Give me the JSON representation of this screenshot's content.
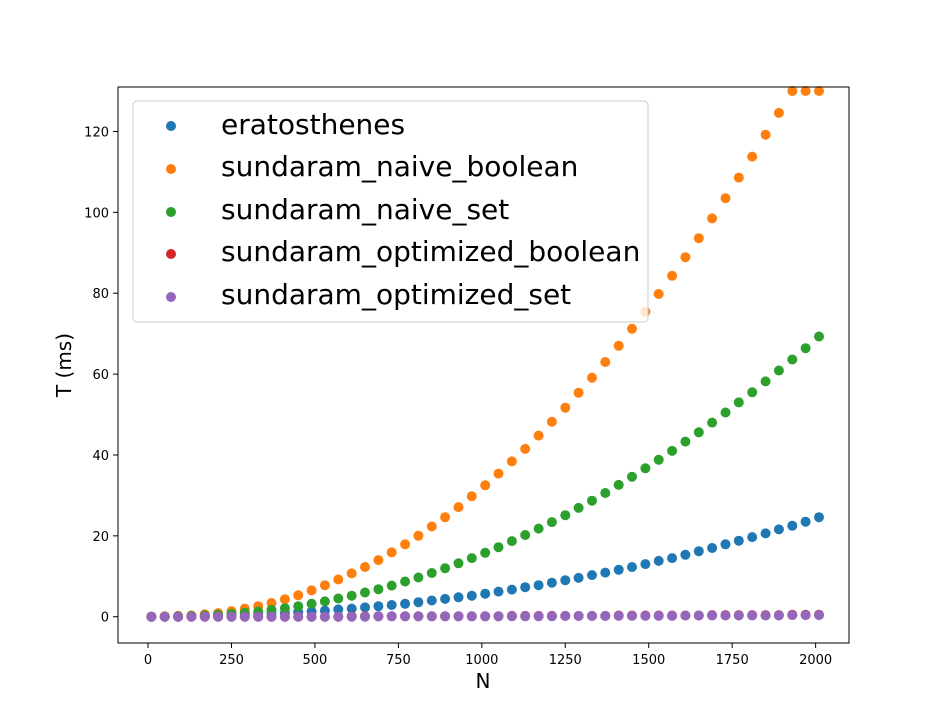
{
  "chart_data": {
    "type": "scatter",
    "title": "",
    "xlabel": "N",
    "ylabel": "T (ms)",
    "xlim": [
      -90,
      2100
    ],
    "ylim": [
      -6.5,
      131
    ],
    "xticks": [
      0,
      250,
      500,
      750,
      1000,
      1250,
      1500,
      1750,
      2000
    ],
    "yticks": [
      0,
      20,
      40,
      60,
      80,
      100,
      120
    ],
    "grid": false,
    "legend_position": "upper-left",
    "x": [
      10,
      50,
      90,
      130,
      170,
      210,
      250,
      290,
      330,
      370,
      410,
      450,
      490,
      530,
      570,
      610,
      650,
      690,
      730,
      770,
      810,
      850,
      890,
      930,
      970,
      1010,
      1050,
      1090,
      1130,
      1170,
      1210,
      1250,
      1290,
      1330,
      1370,
      1410,
      1450,
      1490,
      1530,
      1570,
      1610,
      1650,
      1690,
      1730,
      1770,
      1810,
      1850,
      1890,
      1930,
      1970,
      2010
    ],
    "series": [
      {
        "name": "eratosthenes",
        "color": "#1f77b4",
        "values": [
          0.0,
          0.0,
          0.0,
          0.1,
          0.2,
          0.3,
          0.4,
          0.5,
          0.6,
          0.8,
          0.9,
          1.1,
          1.3,
          1.5,
          1.8,
          2.0,
          2.3,
          2.6,
          2.9,
          3.2,
          3.6,
          4.0,
          4.4,
          4.8,
          5.2,
          5.7,
          6.2,
          6.7,
          7.3,
          7.8,
          8.4,
          9.0,
          9.6,
          10.3,
          10.9,
          11.6,
          12.3,
          13.0,
          13.8,
          14.5,
          15.3,
          16.2,
          17.0,
          17.9,
          18.8,
          19.7,
          20.6,
          21.6,
          22.5,
          23.5,
          24.6
        ]
      },
      {
        "name": "sundaram_naive_boolean",
        "color": "#ff7f0e",
        "values": [
          0.0,
          0.1,
          0.2,
          0.3,
          0.6,
          0.9,
          1.4,
          2.0,
          2.6,
          3.4,
          4.3,
          5.3,
          6.5,
          7.8,
          9.2,
          10.7,
          12.3,
          14.0,
          15.9,
          17.9,
          20.0,
          22.3,
          24.6,
          27.1,
          29.8,
          32.5,
          35.4,
          38.4,
          41.5,
          44.8,
          48.2,
          51.7,
          55.4,
          59.1,
          63.0,
          67.0,
          71.2,
          75.4,
          79.8,
          84.3,
          88.9,
          93.6,
          98.5,
          103.5,
          108.6,
          113.8,
          119.2,
          124.6,
          130.0,
          130.0,
          130.0
        ]
      },
      {
        "name": "sundaram_naive_set",
        "color": "#2ca02c",
        "values": [
          0.0,
          0.0,
          0.1,
          0.2,
          0.3,
          0.5,
          0.7,
          1.0,
          1.3,
          1.7,
          2.1,
          2.6,
          3.2,
          3.8,
          4.5,
          5.2,
          6.0,
          6.8,
          7.7,
          8.7,
          9.7,
          10.8,
          12.0,
          13.2,
          14.5,
          15.8,
          17.2,
          18.7,
          20.2,
          21.8,
          23.4,
          25.1,
          26.9,
          28.7,
          30.6,
          32.6,
          34.6,
          36.7,
          38.8,
          41.0,
          43.3,
          45.6,
          48.0,
          50.5,
          53.0,
          55.5,
          58.2,
          60.9,
          63.6,
          66.4,
          69.3
        ]
      },
      {
        "name": "sundaram_optimized_boolean",
        "color": "#d62728",
        "values": [
          0.0,
          0.0,
          0.0,
          0.0,
          0.0,
          0.0,
          0.0,
          0.0,
          0.0,
          0.0,
          0.0,
          0.0,
          0.0,
          0.0,
          0.0,
          0.1,
          0.1,
          0.1,
          0.1,
          0.1,
          0.1,
          0.1,
          0.1,
          0.1,
          0.1,
          0.1,
          0.1,
          0.2,
          0.2,
          0.2,
          0.2,
          0.2,
          0.2,
          0.2,
          0.2,
          0.3,
          0.3,
          0.3,
          0.3,
          0.3,
          0.3,
          0.3,
          0.4,
          0.4,
          0.4,
          0.4,
          0.4,
          0.4,
          0.5,
          0.5,
          0.5
        ]
      },
      {
        "name": "sundaram_optimized_set",
        "color": "#9467bd",
        "values": [
          0.0,
          0.0,
          0.0,
          0.0,
          0.0,
          0.0,
          0.0,
          0.0,
          0.0,
          0.0,
          0.0,
          0.0,
          0.0,
          0.0,
          0.0,
          0.0,
          0.0,
          0.1,
          0.1,
          0.1,
          0.1,
          0.1,
          0.1,
          0.1,
          0.1,
          0.1,
          0.1,
          0.1,
          0.1,
          0.1,
          0.1,
          0.2,
          0.2,
          0.2,
          0.2,
          0.2,
          0.2,
          0.2,
          0.2,
          0.2,
          0.3,
          0.3,
          0.3,
          0.3,
          0.3,
          0.3,
          0.3,
          0.3,
          0.4,
          0.4,
          0.4
        ]
      }
    ]
  }
}
